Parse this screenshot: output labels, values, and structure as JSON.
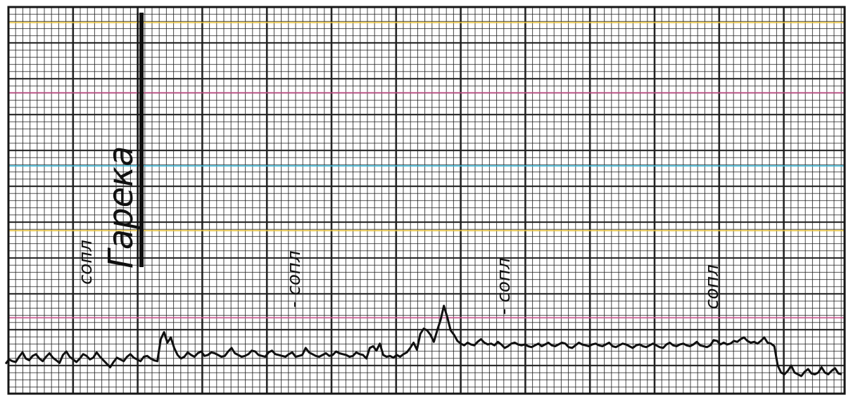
{
  "annotations": {
    "title": "Гарека",
    "marks": [
      "сопл",
      "- сопл",
      "- сопл",
      "сопл"
    ]
  },
  "colors": {
    "ink": "#111111",
    "paper": "#ffffff",
    "grid": "#1a1a1a",
    "accent_yellow": "#e8c23a",
    "accent_magenta": "#c8508a",
    "accent_cyan": "#36b6d6"
  },
  "trace_note": "",
  "trace": [
    0.22,
    0.27,
    0.25,
    0.24,
    0.3,
    0.35,
    0.28,
    0.26,
    0.31,
    0.33,
    0.28,
    0.25,
    0.3,
    0.34,
    0.29,
    0.26,
    0.23,
    0.32,
    0.36,
    0.3,
    0.27,
    0.24,
    0.28,
    0.33,
    0.31,
    0.27,
    0.29,
    0.35,
    0.3,
    0.26,
    0.22,
    0.18,
    0.24,
    0.29,
    0.27,
    0.25,
    0.3,
    0.33,
    0.29,
    0.27,
    0.25,
    0.3,
    0.31,
    0.28,
    0.26,
    0.25,
    0.5,
    0.58,
    0.46,
    0.52,
    0.4,
    0.32,
    0.28,
    0.3,
    0.35,
    0.32,
    0.3,
    0.34,
    0.36,
    0.31,
    0.32,
    0.35,
    0.34,
    0.32,
    0.3,
    0.31,
    0.36,
    0.4,
    0.34,
    0.32,
    0.3,
    0.31,
    0.33,
    0.37,
    0.36,
    0.32,
    0.31,
    0.3,
    0.35,
    0.37,
    0.33,
    0.32,
    0.31,
    0.3,
    0.33,
    0.35,
    0.3,
    0.31,
    0.32,
    0.4,
    0.35,
    0.33,
    0.31,
    0.3,
    0.32,
    0.34,
    0.31,
    0.32,
    0.36,
    0.34,
    0.33,
    0.32,
    0.3,
    0.31,
    0.35,
    0.33,
    0.32,
    0.28,
    0.4,
    0.42,
    0.37,
    0.45,
    0.32,
    0.3,
    0.31,
    0.29,
    0.32,
    0.3,
    0.33,
    0.35,
    0.4,
    0.46,
    0.38,
    0.56,
    0.62,
    0.6,
    0.55,
    0.47,
    0.6,
    0.72,
    0.88,
    0.75,
    0.6,
    0.55,
    0.48,
    0.45,
    0.43,
    0.46,
    0.44,
    0.43,
    0.47,
    0.5,
    0.46,
    0.44,
    0.45,
    0.43,
    0.47,
    0.44,
    0.4,
    0.42,
    0.45,
    0.46,
    0.44,
    0.43,
    0.44,
    0.42,
    0.41,
    0.43,
    0.45,
    0.42,
    0.44,
    0.46,
    0.43,
    0.42,
    0.44,
    0.46,
    0.45,
    0.41,
    0.4,
    0.43,
    0.46,
    0.44,
    0.43,
    0.42,
    0.44,
    0.45,
    0.43,
    0.42,
    0.44,
    0.46,
    0.42,
    0.41,
    0.43,
    0.45,
    0.44,
    0.42,
    0.4,
    0.43,
    0.44,
    0.42,
    0.41,
    0.43,
    0.45,
    0.43,
    0.41,
    0.4,
    0.44,
    0.46,
    0.43,
    0.42,
    0.44,
    0.45,
    0.43,
    0.42,
    0.44,
    0.47,
    0.43,
    0.42,
    0.41,
    0.43,
    0.49,
    0.48,
    0.44,
    0.46,
    0.44,
    0.45,
    0.48,
    0.47,
    0.5,
    0.52,
    0.48,
    0.46,
    0.47,
    0.45,
    0.48,
    0.52,
    0.46,
    0.45,
    0.42,
    0.2,
    0.12,
    0.1,
    0.14,
    0.2,
    0.12,
    0.1,
    0.08,
    0.13,
    0.16,
    0.11,
    0.1,
    0.12,
    0.18,
    0.12,
    0.1,
    0.14,
    0.17,
    0.11,
    0.1
  ]
}
